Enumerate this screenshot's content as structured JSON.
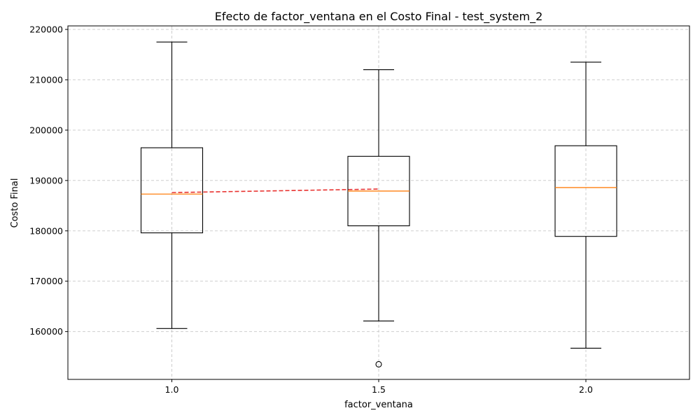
{
  "chart_data": {
    "type": "box",
    "title": "Efecto de factor_ventana en el Costo Final - test_system_2",
    "xlabel": "factor_ventana",
    "ylabel": "Costo Final",
    "categories": [
      "1.0",
      "1.5",
      "2.0"
    ],
    "ylim": [
      150500,
      220700
    ],
    "yticks": [
      160000,
      170000,
      180000,
      190000,
      200000,
      210000,
      220000
    ],
    "grid": true,
    "boxes": [
      {
        "category": "1.0",
        "whisker_low": 160600,
        "q1": 179600,
        "median": 187300,
        "q3": 196500,
        "whisker_high": 217500,
        "outliers": []
      },
      {
        "category": "1.5",
        "whisker_low": 162100,
        "q1": 181000,
        "median": 187900,
        "q3": 194800,
        "whisker_high": 212000,
        "outliers": [
          153500
        ]
      },
      {
        "category": "2.0",
        "whisker_low": 156700,
        "q1": 178900,
        "median": 188600,
        "q3": 196900,
        "whisker_high": 213500,
        "outliers": []
      }
    ],
    "trend_line": {
      "x": [
        "1.0",
        "1.5"
      ],
      "y": [
        187600,
        188300
      ]
    },
    "colors": {
      "box": "#000000",
      "median": "#ff7f0e",
      "trend": "#e8322f",
      "grid": "#c7c7c7"
    }
  }
}
